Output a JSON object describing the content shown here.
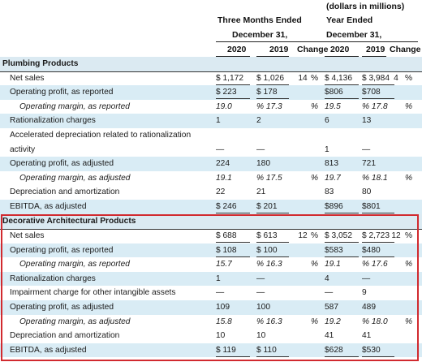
{
  "header": {
    "units": "(dollars in millions)",
    "three_months": "Three Months Ended",
    "three_months_date": "December 31,",
    "year_ended": "Year Ended",
    "year_ended_date": "December 31,",
    "col_2020": "2020",
    "col_2019": "2019",
    "col_change": "Change",
    "col_y2020": "2020",
    "col_y2019": "2019",
    "col_ychange": "Change"
  },
  "plumbing": {
    "title": "Plumbing Products",
    "rows": [
      {
        "label": "Net sales",
        "q2020": "$ 1,172",
        "q2019": "$ 1,026",
        "qchg": "14",
        "qpct": "%",
        "y2020": "$ 4,136",
        "y2019": "$ 3,984",
        "ychg": "4",
        "ypct": "%"
      },
      {
        "label": "Operating profit, as reported",
        "q2020": "$ 223",
        "q2019": "$ 178",
        "qchg": "",
        "qpct": "",
        "y2020": "$806",
        "y2019": "$708",
        "ychg": "",
        "ypct": ""
      },
      {
        "label": "Operating margin, as reported",
        "q2020": "19.0",
        "q2019": "% 17.3",
        "qchg": "",
        "qpct": "%",
        "y2020": "19.5",
        "y2019": "% 17.8",
        "ychg": "",
        "ypct": "%"
      },
      {
        "label": "Rationalization charges",
        "q2020": "1",
        "q2019": "2",
        "qchg": "",
        "qpct": "",
        "y2020": "6",
        "y2019": "13",
        "ychg": "",
        "ypct": ""
      },
      {
        "label": "Accelerated depreciation related to rationalization",
        "q2020": "",
        "q2019": "",
        "qchg": "",
        "qpct": "",
        "y2020": "",
        "y2019": "",
        "ychg": "",
        "ypct": ""
      },
      {
        "label": "activity",
        "q2020": "—",
        "q2019": "—",
        "qchg": "",
        "qpct": "",
        "y2020": "1",
        "y2019": "—",
        "ychg": "",
        "ypct": ""
      },
      {
        "label": "Operating profit, as adjusted",
        "q2020": "224",
        "q2019": "180",
        "qchg": "",
        "qpct": "",
        "y2020": "813",
        "y2019": "721",
        "ychg": "",
        "ypct": ""
      },
      {
        "label": "Operating margin, as adjusted",
        "q2020": "19.1",
        "q2019": "% 17.5",
        "qchg": "",
        "qpct": "%",
        "y2020": "19.7",
        "y2019": "% 18.1",
        "ychg": "",
        "ypct": "%"
      },
      {
        "label": "Depreciation and amortization",
        "q2020": "22",
        "q2019": "21",
        "qchg": "",
        "qpct": "",
        "y2020": "83",
        "y2019": "80",
        "ychg": "",
        "ypct": ""
      },
      {
        "label": "EBITDA, as adjusted",
        "q2020": "$ 246",
        "q2019": "$ 201",
        "qchg": "",
        "qpct": "",
        "y2020": "$896",
        "y2019": "$801",
        "ychg": "",
        "ypct": ""
      }
    ]
  },
  "decorative": {
    "title": "Decorative Architectural Products",
    "rows": [
      {
        "label": "Net sales",
        "q2020": "$ 688",
        "q2019": "$ 613",
        "qchg": "12",
        "qpct": "%",
        "y2020": "$ 3,052",
        "y2019": "$ 2,723",
        "ychg": "12",
        "ypct": "%"
      },
      {
        "label": "Operating profit, as reported",
        "q2020": "$ 108",
        "q2019": "$ 100",
        "qchg": "",
        "qpct": "",
        "y2020": "$583",
        "y2019": "$480",
        "ychg": "",
        "ypct": ""
      },
      {
        "label": "Operating margin, as reported",
        "q2020": "15.7",
        "q2019": "% 16.3",
        "qchg": "",
        "qpct": "%",
        "y2020": "19.1",
        "y2019": "% 17.6",
        "ychg": "",
        "ypct": "%"
      },
      {
        "label": "Rationalization charges",
        "q2020": "1",
        "q2019": "—",
        "qchg": "",
        "qpct": "",
        "y2020": "4",
        "y2019": "—",
        "ychg": "",
        "ypct": ""
      },
      {
        "label": "Impairment charge for other intangible assets",
        "q2020": "—",
        "q2019": "—",
        "qchg": "",
        "qpct": "",
        "y2020": "—",
        "y2019": "9",
        "ychg": "",
        "ypct": ""
      },
      {
        "label": "Operating profit, as adjusted",
        "q2020": "109",
        "q2019": "100",
        "qchg": "",
        "qpct": "",
        "y2020": "587",
        "y2019": "489",
        "ychg": "",
        "ypct": ""
      },
      {
        "label": "Operating margin, as adjusted",
        "q2020": "15.8",
        "q2019": "% 16.3",
        "qchg": "",
        "qpct": "%",
        "y2020": "19.2",
        "y2019": "% 18.0",
        "ychg": "",
        "ypct": "%"
      },
      {
        "label": "Depreciation and amortization",
        "q2020": "10",
        "q2019": "10",
        "qchg": "",
        "qpct": "",
        "y2020": "41",
        "y2019": "41",
        "ychg": "",
        "ypct": ""
      },
      {
        "label": "EBITDA, as adjusted",
        "q2020": "$ 119",
        "q2019": "$ 110",
        "qchg": "",
        "qpct": "",
        "y2020": "$628",
        "y2019": "$530",
        "ychg": "",
        "ypct": ""
      }
    ]
  },
  "colors": {
    "row_shade": "#d9ecf5",
    "highlight_border": "#d12a2f"
  }
}
